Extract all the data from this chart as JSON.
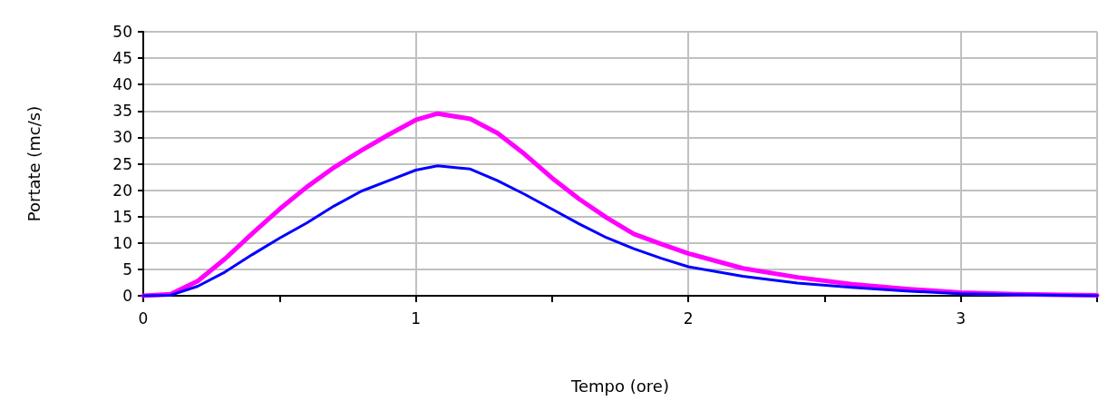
{
  "chart_data": {
    "type": "line",
    "xlabel": "Tempo (ore)",
    "ylabel": "Portate (mc/s)",
    "x": [
      0,
      0.1,
      0.2,
      0.3,
      0.4,
      0.5,
      0.6,
      0.7,
      0.8,
      0.9,
      1.0,
      1.08,
      1.2,
      1.3,
      1.4,
      1.5,
      1.6,
      1.7,
      1.8,
      1.9,
      2.0,
      2.2,
      2.4,
      2.6,
      2.8,
      3.0,
      3.2,
      3.5
    ],
    "series": [
      {
        "color": "#ff00ff",
        "values": [
          0,
          0.3,
          2.8,
          7,
          11.8,
          16.4,
          20.6,
          24.3,
          27.5,
          30.5,
          33.3,
          34.5,
          33.5,
          30.8,
          26.8,
          22.3,
          18.3,
          14.8,
          11.7,
          9.8,
          8.0,
          5.2,
          3.5,
          2.2,
          1.3,
          0.6,
          0.3,
          0.1
        ]
      },
      {
        "color": "#0000ff",
        "values": [
          0,
          0.1,
          1.8,
          4.5,
          7.8,
          10.9,
          13.8,
          17,
          19.8,
          21.8,
          23.8,
          24.6,
          24,
          21.8,
          19.2,
          16.4,
          13.6,
          11.0,
          8.9,
          7.1,
          5.5,
          3.7,
          2.4,
          1.6,
          0.9,
          0.4,
          0.2,
          0
        ]
      }
    ],
    "xlim": [
      0,
      3.5
    ],
    "xticks": [
      0,
      {
        "value": 0.5,
        "label": null
      },
      1,
      {
        "value": 1.5,
        "label": null
      },
      2,
      {
        "value": 2.5,
        "label": null
      },
      3,
      {
        "value": 3.5,
        "label": null
      }
    ],
    "ylim": [
      0,
      50
    ],
    "yticks": [
      0,
      5,
      10,
      15,
      20,
      25,
      30,
      35,
      40,
      45,
      50
    ],
    "grid": true,
    "marker": "none",
    "line_style": "solid"
  }
}
